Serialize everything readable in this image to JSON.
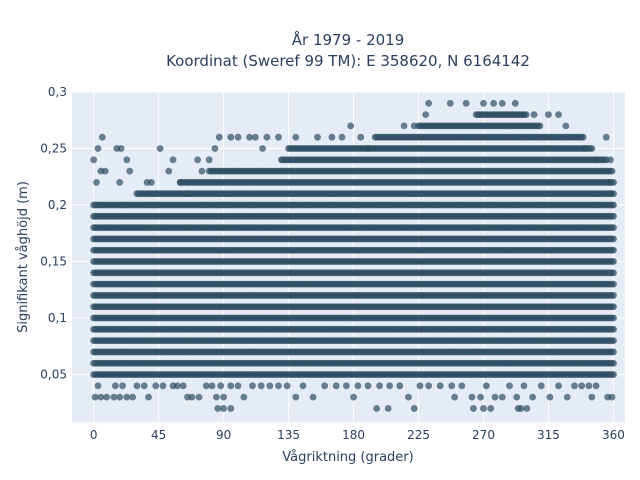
{
  "chart_data": {
    "type": "scatter",
    "title": "År 1979 - 2019",
    "subtitle": "Koordinat (Sweref 99 TM): E 358620, N 6164142",
    "xlabel": "Vågriktning (grader)",
    "ylabel": "Signifikant våghöjd (m)",
    "xlim": [
      -15,
      368
    ],
    "ylim": [
      0.008,
      0.3
    ],
    "x_ticks": [
      0,
      45,
      90,
      135,
      180,
      225,
      270,
      315,
      360
    ],
    "x_tick_labels": [
      "0",
      "45",
      "90",
      "135",
      "180",
      "225",
      "270",
      "315",
      "360"
    ],
    "y_ticks": [
      0.05,
      0.1,
      0.15,
      0.2,
      0.25,
      0.3
    ],
    "y_tick_labels": [
      "0,05",
      "0,1",
      "0,15",
      "0,2",
      "0,25",
      "0,3"
    ],
    "grid": true,
    "marker_color": "#2f4e63",
    "plot_bg": "#e5ecf6",
    "dense_bands": [
      {
        "y": 0.1,
        "x_range": [
          0,
          360
        ]
      },
      {
        "y": 0.11,
        "x_range": [
          0,
          360
        ]
      },
      {
        "y": 0.12,
        "x_range": [
          0,
          360
        ]
      },
      {
        "y": 0.13,
        "x_range": [
          0,
          360
        ]
      },
      {
        "y": 0.14,
        "x_range": [
          0,
          360
        ]
      },
      {
        "y": 0.15,
        "x_range": [
          0,
          360
        ]
      },
      {
        "y": 0.16,
        "x_range": [
          0,
          360
        ]
      },
      {
        "y": 0.17,
        "x_range": [
          0,
          360
        ]
      },
      {
        "y": 0.18,
        "x_range": [
          0,
          360
        ]
      },
      {
        "y": 0.19,
        "x_range": [
          0,
          360
        ]
      },
      {
        "y": 0.2,
        "x_range": [
          0,
          360
        ]
      },
      {
        "y": 0.21,
        "x_range": [
          30,
          360
        ]
      },
      {
        "y": 0.22,
        "x_range": [
          60,
          360
        ]
      },
      {
        "y": 0.23,
        "x_range": [
          80,
          360
        ]
      },
      {
        "y": 0.24,
        "x_range": [
          130,
          355
        ]
      },
      {
        "y": 0.25,
        "x_range": [
          135,
          345
        ]
      },
      {
        "y": 0.26,
        "x_range": [
          195,
          340
        ]
      },
      {
        "y": 0.27,
        "x_range": [
          225,
          310
        ]
      },
      {
        "y": 0.28,
        "x_range": [
          265,
          300
        ]
      },
      {
        "y": 0.09,
        "x_range": [
          0,
          360
        ]
      },
      {
        "y": 0.08,
        "x_range": [
          0,
          360
        ]
      },
      {
        "y": 0.07,
        "x_range": [
          0,
          360
        ]
      },
      {
        "y": 0.06,
        "x_range": [
          0,
          360
        ]
      },
      {
        "y": 0.05,
        "x_range": [
          0,
          360
        ]
      }
    ],
    "points": [
      {
        "x": 0,
        "y": 0.24
      },
      {
        "x": 3,
        "y": 0.25
      },
      {
        "x": 6,
        "y": 0.26
      },
      {
        "x": 2,
        "y": 0.22
      },
      {
        "x": 5,
        "y": 0.23
      },
      {
        "x": 8,
        "y": 0.23
      },
      {
        "x": 16,
        "y": 0.25
      },
      {
        "x": 19,
        "y": 0.25
      },
      {
        "x": 23,
        "y": 0.24
      },
      {
        "x": 25,
        "y": 0.23
      },
      {
        "x": 18,
        "y": 0.22
      },
      {
        "x": 37,
        "y": 0.22
      },
      {
        "x": 40,
        "y": 0.22
      },
      {
        "x": 46,
        "y": 0.25
      },
      {
        "x": 52,
        "y": 0.23
      },
      {
        "x": 55,
        "y": 0.24
      },
      {
        "x": 60,
        "y": 0.22
      },
      {
        "x": 66,
        "y": 0.21
      },
      {
        "x": 72,
        "y": 0.24
      },
      {
        "x": 75,
        "y": 0.23
      },
      {
        "x": 80,
        "y": 0.24
      },
      {
        "x": 84,
        "y": 0.25
      },
      {
        "x": 87,
        "y": 0.26
      },
      {
        "x": 95,
        "y": 0.26
      },
      {
        "x": 100,
        "y": 0.26
      },
      {
        "x": 108,
        "y": 0.26
      },
      {
        "x": 112,
        "y": 0.26
      },
      {
        "x": 117,
        "y": 0.25
      },
      {
        "x": 120,
        "y": 0.26
      },
      {
        "x": 128,
        "y": 0.26
      },
      {
        "x": 140,
        "y": 0.26
      },
      {
        "x": 155,
        "y": 0.26
      },
      {
        "x": 165,
        "y": 0.26
      },
      {
        "x": 172,
        "y": 0.26
      },
      {
        "x": 178,
        "y": 0.27
      },
      {
        "x": 185,
        "y": 0.26
      },
      {
        "x": 190,
        "y": 0.25
      },
      {
        "x": 215,
        "y": 0.27
      },
      {
        "x": 222,
        "y": 0.27
      },
      {
        "x": 230,
        "y": 0.28
      },
      {
        "x": 232,
        "y": 0.29
      },
      {
        "x": 247,
        "y": 0.29
      },
      {
        "x": 258,
        "y": 0.29
      },
      {
        "x": 270,
        "y": 0.29
      },
      {
        "x": 277,
        "y": 0.29
      },
      {
        "x": 283,
        "y": 0.29
      },
      {
        "x": 292,
        "y": 0.29
      },
      {
        "x": 305,
        "y": 0.28
      },
      {
        "x": 315,
        "y": 0.28
      },
      {
        "x": 322,
        "y": 0.28
      },
      {
        "x": 327,
        "y": 0.27
      },
      {
        "x": 340,
        "y": 0.25
      },
      {
        "x": 348,
        "y": 0.24
      },
      {
        "x": 355,
        "y": 0.26
      },
      {
        "x": 358,
        "y": 0.24
      },
      {
        "x": 357,
        "y": 0.22
      },
      {
        "x": 358,
        "y": 0.21
      },
      {
        "x": 3,
        "y": 0.04
      },
      {
        "x": 1,
        "y": 0.03
      },
      {
        "x": 5,
        "y": 0.03
      },
      {
        "x": 9,
        "y": 0.03
      },
      {
        "x": 14,
        "y": 0.03
      },
      {
        "x": 18,
        "y": 0.03
      },
      {
        "x": 23,
        "y": 0.03
      },
      {
        "x": 27,
        "y": 0.03
      },
      {
        "x": 15,
        "y": 0.04
      },
      {
        "x": 20,
        "y": 0.04
      },
      {
        "x": 30,
        "y": 0.04
      },
      {
        "x": 35,
        "y": 0.04
      },
      {
        "x": 38,
        "y": 0.03
      },
      {
        "x": 43,
        "y": 0.04
      },
      {
        "x": 48,
        "y": 0.04
      },
      {
        "x": 55,
        "y": 0.04
      },
      {
        "x": 58,
        "y": 0.04
      },
      {
        "x": 62,
        "y": 0.04
      },
      {
        "x": 65,
        "y": 0.03
      },
      {
        "x": 68,
        "y": 0.03
      },
      {
        "x": 73,
        "y": 0.03
      },
      {
        "x": 78,
        "y": 0.04
      },
      {
        "x": 82,
        "y": 0.04
      },
      {
        "x": 85,
        "y": 0.03
      },
      {
        "x": 88,
        "y": 0.04
      },
      {
        "x": 90,
        "y": 0.03
      },
      {
        "x": 95,
        "y": 0.04
      },
      {
        "x": 100,
        "y": 0.04
      },
      {
        "x": 104,
        "y": 0.03
      },
      {
        "x": 110,
        "y": 0.04
      },
      {
        "x": 116,
        "y": 0.04
      },
      {
        "x": 122,
        "y": 0.04
      },
      {
        "x": 128,
        "y": 0.04
      },
      {
        "x": 134,
        "y": 0.04
      },
      {
        "x": 145,
        "y": 0.04
      },
      {
        "x": 152,
        "y": 0.03
      },
      {
        "x": 160,
        "y": 0.04
      },
      {
        "x": 168,
        "y": 0.04
      },
      {
        "x": 175,
        "y": 0.04
      },
      {
        "x": 183,
        "y": 0.04
      },
      {
        "x": 190,
        "y": 0.04
      },
      {
        "x": 198,
        "y": 0.04
      },
      {
        "x": 205,
        "y": 0.04
      },
      {
        "x": 212,
        "y": 0.04
      },
      {
        "x": 218,
        "y": 0.03
      },
      {
        "x": 226,
        "y": 0.04
      },
      {
        "x": 232,
        "y": 0.04
      },
      {
        "x": 240,
        "y": 0.04
      },
      {
        "x": 248,
        "y": 0.04
      },
      {
        "x": 255,
        "y": 0.04
      },
      {
        "x": 262,
        "y": 0.03
      },
      {
        "x": 268,
        "y": 0.03
      },
      {
        "x": 272,
        "y": 0.04
      },
      {
        "x": 278,
        "y": 0.03
      },
      {
        "x": 283,
        "y": 0.03
      },
      {
        "x": 288,
        "y": 0.04
      },
      {
        "x": 293,
        "y": 0.03
      },
      {
        "x": 298,
        "y": 0.04
      },
      {
        "x": 304,
        "y": 0.03
      },
      {
        "x": 310,
        "y": 0.04
      },
      {
        "x": 316,
        "y": 0.03
      },
      {
        "x": 322,
        "y": 0.04
      },
      {
        "x": 328,
        "y": 0.03
      },
      {
        "x": 333,
        "y": 0.04
      },
      {
        "x": 338,
        "y": 0.04
      },
      {
        "x": 343,
        "y": 0.04
      },
      {
        "x": 348,
        "y": 0.04
      },
      {
        "x": 356,
        "y": 0.03
      },
      {
        "x": 359,
        "y": 0.03
      },
      {
        "x": 345,
        "y": 0.03
      },
      {
        "x": 140,
        "y": 0.03
      },
      {
        "x": 180,
        "y": 0.03
      },
      {
        "x": 250,
        "y": 0.03
      },
      {
        "x": 86,
        "y": 0.02
      },
      {
        "x": 90,
        "y": 0.02
      },
      {
        "x": 95,
        "y": 0.02
      },
      {
        "x": 196,
        "y": 0.02
      },
      {
        "x": 204,
        "y": 0.02
      },
      {
        "x": 222,
        "y": 0.02
      },
      {
        "x": 263,
        "y": 0.02
      },
      {
        "x": 270,
        "y": 0.02
      },
      {
        "x": 275,
        "y": 0.02
      },
      {
        "x": 294,
        "y": 0.02
      },
      {
        "x": 296,
        "y": 0.02
      },
      {
        "x": 300,
        "y": 0.02
      }
    ]
  }
}
